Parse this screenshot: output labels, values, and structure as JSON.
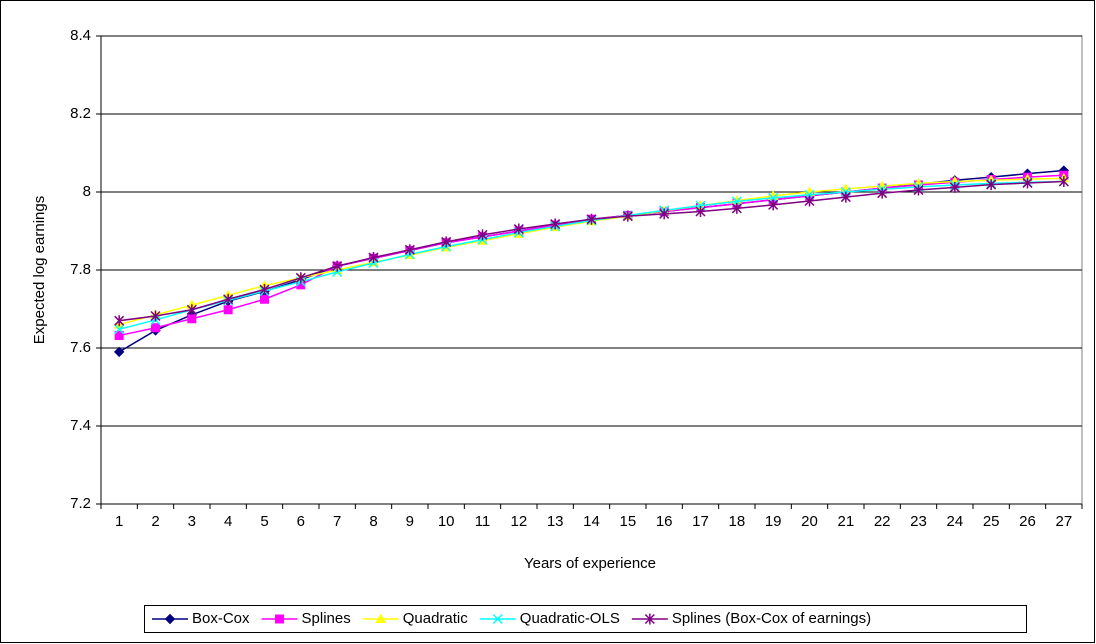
{
  "chart_data": {
    "type": "line",
    "x_label": "Years of experience",
    "y_label": "Expected log earnings",
    "categories": [
      1,
      2,
      3,
      4,
      5,
      6,
      7,
      8,
      9,
      10,
      11,
      12,
      13,
      14,
      15,
      16,
      17,
      18,
      19,
      20,
      21,
      22,
      23,
      24,
      25,
      26,
      27
    ],
    "ylim": [
      7.2,
      8.4
    ],
    "yticks": [
      7.2,
      7.4,
      7.6,
      7.8,
      8,
      8.2,
      8.4
    ],
    "grid": true,
    "legend": "bottom",
    "series": [
      {
        "name": "Box-Cox",
        "color": "#000080",
        "marker": "diamond",
        "values": [
          7.59,
          7.645,
          7.685,
          7.72,
          7.745,
          7.775,
          7.81,
          7.83,
          7.85,
          7.87,
          7.885,
          7.9,
          7.915,
          7.93,
          7.94,
          7.95,
          7.96,
          7.97,
          7.98,
          7.99,
          8.0,
          8.01,
          8.02,
          8.03,
          8.038,
          8.047,
          8.055
        ]
      },
      {
        "name": "Splines",
        "color": "#ff00ff",
        "marker": "square",
        "values": [
          7.632,
          7.652,
          7.675,
          7.698,
          7.725,
          7.762,
          7.81,
          7.83,
          7.85,
          7.87,
          7.885,
          7.9,
          7.915,
          7.93,
          7.94,
          7.95,
          7.96,
          7.97,
          7.98,
          7.99,
          8.0,
          8.01,
          8.018,
          8.025,
          8.032,
          8.038,
          8.043
        ]
      },
      {
        "name": "Quadratic",
        "color": "#ffff00",
        "marker": "triangle",
        "values": [
          7.66,
          7.685,
          7.71,
          7.735,
          7.76,
          7.78,
          7.8,
          7.82,
          7.838,
          7.858,
          7.875,
          7.893,
          7.91,
          7.925,
          7.938,
          7.952,
          7.965,
          7.978,
          7.99,
          8.0,
          8.008,
          8.015,
          8.022,
          8.027,
          8.03,
          8.033,
          8.035
        ]
      },
      {
        "name": "Quadratic-OLS",
        "color": "#00ffff",
        "marker": "x",
        "values": [
          7.648,
          7.672,
          7.698,
          7.722,
          7.746,
          7.77,
          7.795,
          7.818,
          7.84,
          7.86,
          7.878,
          7.896,
          7.912,
          7.927,
          7.94,
          7.953,
          7.965,
          7.976,
          7.985,
          7.993,
          8.0,
          8.007,
          8.013,
          8.018,
          8.022,
          8.025,
          8.027
        ]
      },
      {
        "name": "Splines (Box-Cox of earnings)",
        "color": "#800080",
        "marker": "star",
        "values": [
          7.67,
          7.682,
          7.698,
          7.725,
          7.75,
          7.78,
          7.81,
          7.832,
          7.852,
          7.872,
          7.89,
          7.905,
          7.918,
          7.93,
          7.938,
          7.944,
          7.95,
          7.958,
          7.967,
          7.977,
          7.987,
          7.997,
          8.005,
          8.012,
          8.019,
          8.023,
          8.027
        ]
      }
    ]
  }
}
